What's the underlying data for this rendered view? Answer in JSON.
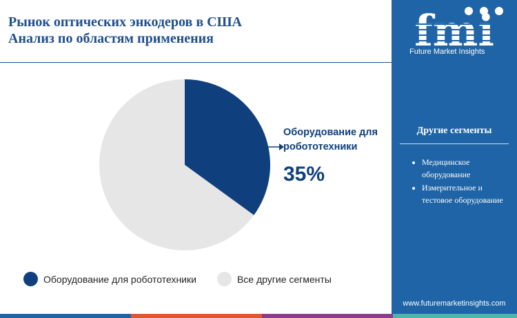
{
  "title_lines": [
    "Рынок оптических энкодеров в США",
    "Анализ по областям применения"
  ],
  "chart_data": {
    "type": "pie",
    "slices": [
      {
        "label": "Оборудование для робототехники",
        "value": 35,
        "color": "#0f3f7d"
      },
      {
        "label": "Все другие сегменты",
        "value": 65,
        "color": "#e6e6e6"
      }
    ],
    "callout": {
      "label_lines": [
        "Оборудование для",
        "робототехники"
      ],
      "value_text": "35%"
    },
    "legend": [
      "Оборудование для робототехники",
      "Все другие сегменты"
    ]
  },
  "sidebar": {
    "logo_text": "fmi",
    "logo_subtitle": "Future Market Insights",
    "section_title": "Другие сегменты",
    "items": [
      "Медицинское оборудование",
      "Измерительное и тестовое оборудование"
    ],
    "website": "www.futuremarketinsights.com",
    "bg_color": "#1f64a6"
  },
  "footer_colors": [
    "#1f64a6",
    "#e2572c",
    "#8c3b8d",
    "#4db6ac"
  ]
}
